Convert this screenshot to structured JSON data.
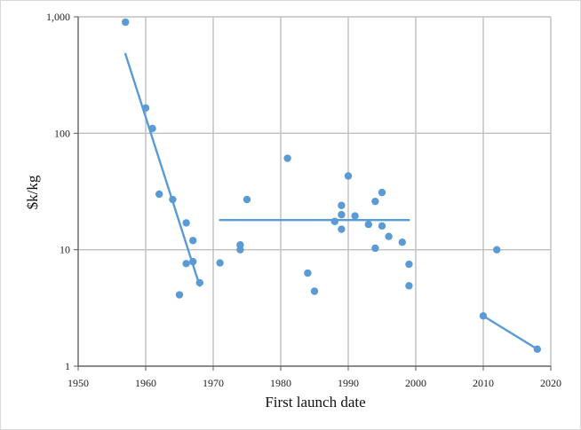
{
  "chart_data": {
    "type": "scatter",
    "title": "",
    "xlabel": "First launch date",
    "ylabel": "$k/kg",
    "xlim": [
      1950,
      2020
    ],
    "ylim": [
      1,
      1000
    ],
    "y_scale": "log",
    "grid": true,
    "legend": "none",
    "x_ticks": [
      1950,
      1960,
      1970,
      1980,
      1990,
      2000,
      2010,
      2020
    ],
    "x_tick_labels": [
      "1950",
      "1960",
      "1970",
      "1980",
      "1990",
      "2000",
      "2010",
      "2020"
    ],
    "y_ticks": [
      1,
      10,
      100,
      1000
    ],
    "y_tick_labels": [
      "1",
      "10",
      "100",
      "1,000"
    ],
    "colors": {
      "points": "#5b9bd5",
      "trend": "#5b9bd5",
      "grid": "#bfbfbf",
      "axis": "#595959"
    },
    "points": [
      {
        "x": 1957,
        "y": 900
      },
      {
        "x": 1960,
        "y": 165
      },
      {
        "x": 1961,
        "y": 110
      },
      {
        "x": 1962,
        "y": 30
      },
      {
        "x": 1964,
        "y": 27
      },
      {
        "x": 1965,
        "y": 4.1
      },
      {
        "x": 1966,
        "y": 17
      },
      {
        "x": 1966,
        "y": 7.6
      },
      {
        "x": 1967,
        "y": 12
      },
      {
        "x": 1967,
        "y": 7.9
      },
      {
        "x": 1968,
        "y": 5.2
      },
      {
        "x": 1971,
        "y": 7.7
      },
      {
        "x": 1974,
        "y": 11
      },
      {
        "x": 1974,
        "y": 10
      },
      {
        "x": 1975,
        "y": 27
      },
      {
        "x": 1981,
        "y": 61
      },
      {
        "x": 1984,
        "y": 6.3
      },
      {
        "x": 1985,
        "y": 4.4
      },
      {
        "x": 1988,
        "y": 17.5
      },
      {
        "x": 1989,
        "y": 24
      },
      {
        "x": 1989,
        "y": 20
      },
      {
        "x": 1989,
        "y": 15
      },
      {
        "x": 1990,
        "y": 43
      },
      {
        "x": 1991,
        "y": 19.5
      },
      {
        "x": 1993,
        "y": 16.5
      },
      {
        "x": 1994,
        "y": 26
      },
      {
        "x": 1994,
        "y": 10.3
      },
      {
        "x": 1995,
        "y": 31
      },
      {
        "x": 1995,
        "y": 16
      },
      {
        "x": 1996,
        "y": 13
      },
      {
        "x": 1998,
        "y": 11.6
      },
      {
        "x": 1999,
        "y": 7.5
      },
      {
        "x": 1999,
        "y": 4.9
      },
      {
        "x": 2010,
        "y": 2.7
      },
      {
        "x": 2012,
        "y": 10
      },
      {
        "x": 2018,
        "y": 1.4
      }
    ],
    "trend_lines": [
      {
        "x": [
          1957,
          1968
        ],
        "y": [
          480,
          4.9
        ]
      },
      {
        "x": [
          1971,
          1999
        ],
        "y": [
          18,
          18
        ]
      },
      {
        "x": [
          2010,
          2018
        ],
        "y": [
          2.7,
          1.4
        ]
      }
    ]
  }
}
